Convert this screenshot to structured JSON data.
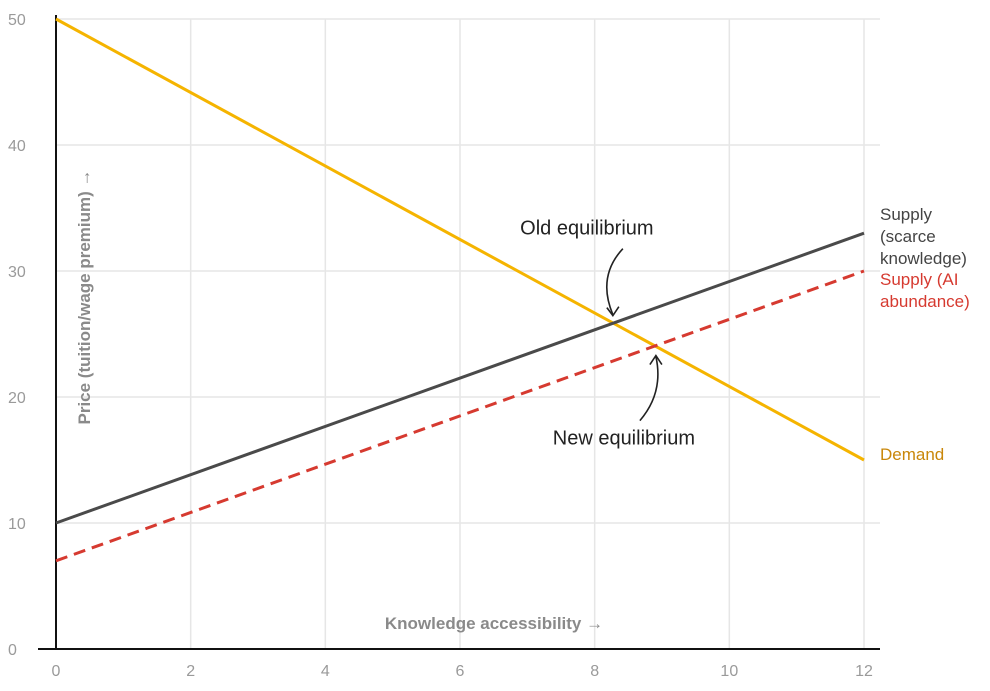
{
  "chart_data": {
    "type": "line",
    "title": "",
    "xlabel": "Knowledge accessibility →",
    "ylabel": "Price (tuition/wage premium) →",
    "xlim": [
      0,
      12
    ],
    "ylim": [
      0,
      50
    ],
    "xticks": [
      0,
      2,
      4,
      6,
      8,
      10,
      12
    ],
    "yticks": [
      0,
      10,
      20,
      30,
      40,
      50
    ],
    "grid": true,
    "series": [
      {
        "name": "Demand",
        "label_lines": [
          "Demand"
        ],
        "x": [
          0,
          12
        ],
        "y": [
          50,
          15
        ],
        "color": "#f5b400",
        "dash": false
      },
      {
        "name": "Supply (scarce knowledge)",
        "label_lines": [
          "Supply",
          "(scarce",
          "knowledge)"
        ],
        "x": [
          0,
          12
        ],
        "y": [
          10,
          33
        ],
        "color": "#4a4a4a",
        "dash": false
      },
      {
        "name": "Supply (AI abundance)",
        "label_lines": [
          "Supply (AI",
          "abundance)"
        ],
        "x": [
          0,
          12
        ],
        "y": [
          7,
          30
        ],
        "color": "#d63a30",
        "dash": true
      }
    ],
    "annotations": [
      {
        "text": "Old equilibrium",
        "x": 8.3,
        "y": 25.9
      },
      {
        "text": "New equilibrium",
        "x": 8.85,
        "y": 24.0
      }
    ],
    "label_colors": {
      "Demand": "#c9870a",
      "Supply (scarce knowledge)": "#444444",
      "Supply (AI abundance)": "#d63a30"
    }
  }
}
